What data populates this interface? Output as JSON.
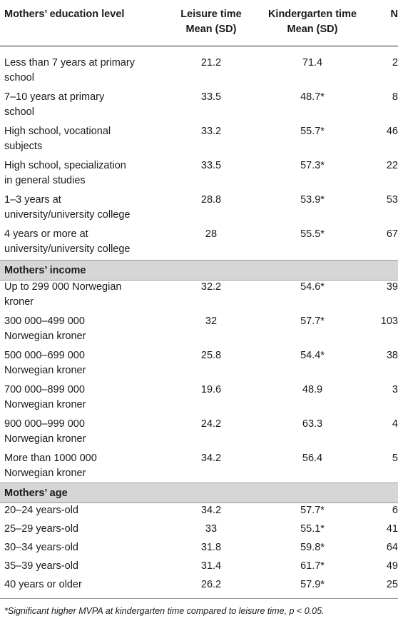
{
  "header": {
    "col1": "Mothers’ education level",
    "col2_line1": "Leisure time",
    "col2_line2": "Mean (SD)",
    "col3_line1": "Kindergarten time",
    "col3_line2": "Mean (SD)",
    "col4": "N"
  },
  "education": [
    {
      "label1": "Less than 7 years at primary",
      "label2": "school",
      "leisure": "21.2",
      "kindergarten": "71.4",
      "n": "2"
    },
    {
      "label1": "7–10 years at primary",
      "label2": "school",
      "leisure": "33.5",
      "kindergarten": "48.7*",
      "n": "8"
    },
    {
      "label1": "High school, vocational",
      "label2": "subjects",
      "leisure": "33.2",
      "kindergarten": "55.7*",
      "n": "46"
    },
    {
      "label1": "High school, specialization",
      "label2": "in general studies",
      "leisure": "33.5",
      "kindergarten": "57.3*",
      "n": "22"
    },
    {
      "label1": "1–3 years at",
      "label2": "university/university college",
      "leisure": "28.8",
      "kindergarten": "53.9*",
      "n": "53"
    },
    {
      "label1": "4 years or more at",
      "label2": "university/university college",
      "leisure": "28",
      "kindergarten": "55.5*",
      "n": "67"
    }
  ],
  "income_title": "Mothers’ income",
  "income": [
    {
      "label1": "Up to 299 000 Norwegian",
      "label2": "kroner",
      "leisure": "32.2",
      "kindergarten": "54.6*",
      "n": "39"
    },
    {
      "label1": "300 000–499 000",
      "label2": "Norwegian kroner",
      "leisure": "32",
      "kindergarten": "57.7*",
      "n": "103"
    },
    {
      "label1": "500 000–699 000",
      "label2": "Norwegian kroner",
      "leisure": "25.8",
      "kindergarten": "54.4*",
      "n": "38"
    },
    {
      "label1": "700 000–899 000",
      "label2": "Norwegian kroner",
      "leisure": "19.6",
      "kindergarten": "48.9",
      "n": "3"
    },
    {
      "label1": "900 000–999 000",
      "label2": "Norwegian kroner",
      "leisure": "24.2",
      "kindergarten": "63.3",
      "n": "4"
    },
    {
      "label1": "More than 1000 000",
      "label2": "Norwegian kroner",
      "leisure": "34.2",
      "kindergarten": "56.4",
      "n": "5"
    }
  ],
  "age_title": "Mothers’ age",
  "age": [
    {
      "label": "20–24 years-old",
      "leisure": "34.2",
      "kindergarten": "57.7*",
      "n": "6"
    },
    {
      "label": "25–29 years-old",
      "leisure": "33",
      "kindergarten": "55.1*",
      "n": "41"
    },
    {
      "label": "30–34 years-old",
      "leisure": "31.8",
      "kindergarten": "59.8*",
      "n": "64"
    },
    {
      "label": "35–39 years-old",
      "leisure": "31.4",
      "kindergarten": "61.7*",
      "n": "49"
    },
    {
      "label": "40 years or older",
      "leisure": "26.2",
      "kindergarten": "57.9*",
      "n": "25"
    }
  ],
  "footnote": "*Significant higher MVPA at kindergarten time compared to leisure time, p < 0.05."
}
